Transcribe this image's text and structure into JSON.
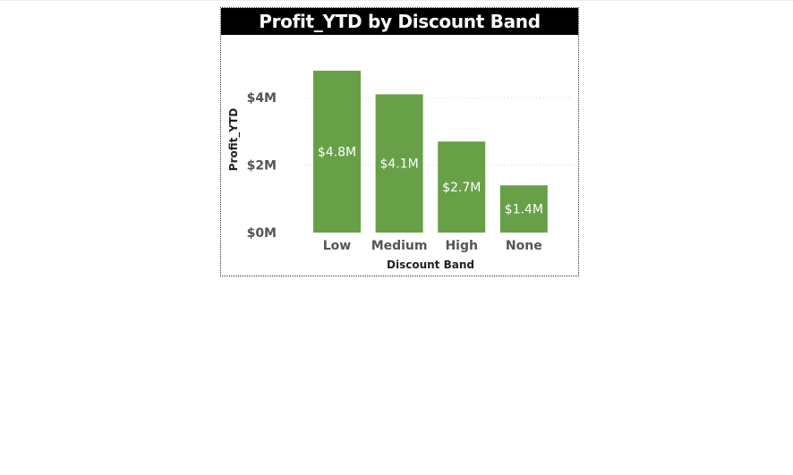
{
  "chart_data": {
    "type": "bar",
    "title": "Profit_YTD by Discount Band",
    "xlabel": "Discount Band",
    "ylabel": "Profit_YTD",
    "categories": [
      "Low",
      "Medium",
      "High",
      "None"
    ],
    "values": [
      4.8,
      4.1,
      2.7,
      1.4
    ],
    "value_unit": "millions of dollars",
    "data_labels": [
      "$4.8M",
      "$4.1M",
      "$2.7M",
      "$1.4M"
    ],
    "y_ticks": [
      0,
      2,
      4
    ],
    "y_tick_labels": [
      "$0M",
      "$2M",
      "$4M"
    ],
    "ylim": [
      0,
      5
    ],
    "grid": true,
    "legend": false,
    "bar_color": "#68a047",
    "title_background": "#000000",
    "title_color": "#ffffff"
  }
}
